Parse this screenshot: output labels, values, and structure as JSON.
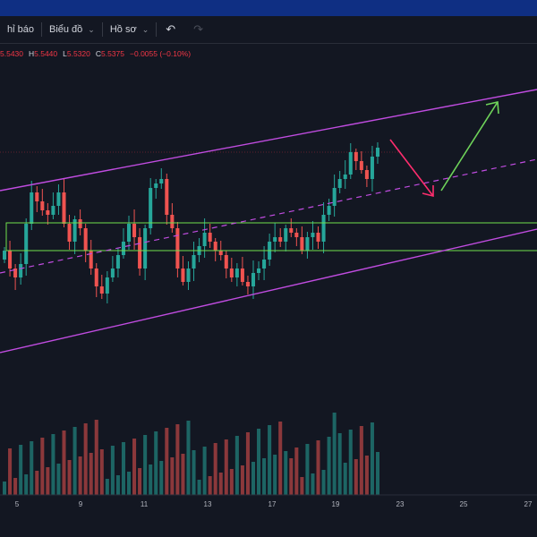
{
  "toolbar": {
    "indicators_label": "hỉ báo",
    "chart_label": "Biểu đồ",
    "profile_label": "Hồ sơ",
    "undo_icon": "undo-icon",
    "redo_icon": "redo-icon"
  },
  "ohlc": {
    "open": "5.5430",
    "high": "5.5440",
    "low": "5.5320",
    "close": "5.5375",
    "change": "−0.0055 (−0.10%)",
    "labels": {
      "high": "H",
      "low": "L",
      "close": "C"
    }
  },
  "colors": {
    "background": "#131722",
    "up": "#26a69a",
    "down": "#ef5350",
    "channel": "#c04ce0",
    "zone": "#70e04c",
    "arrow_down": "#ff2d6e",
    "arrow_up": "#6fd45a"
  },
  "chart_data": {
    "type": "candlestick",
    "x_ticks": [
      "5",
      "9",
      "11",
      "13",
      "17",
      "19",
      "23",
      "25",
      "27"
    ],
    "drawings": [
      "parallel-channel",
      "channel-midline-dashed",
      "support-resistance-zone",
      "arrow-down",
      "arrow-up"
    ]
  }
}
